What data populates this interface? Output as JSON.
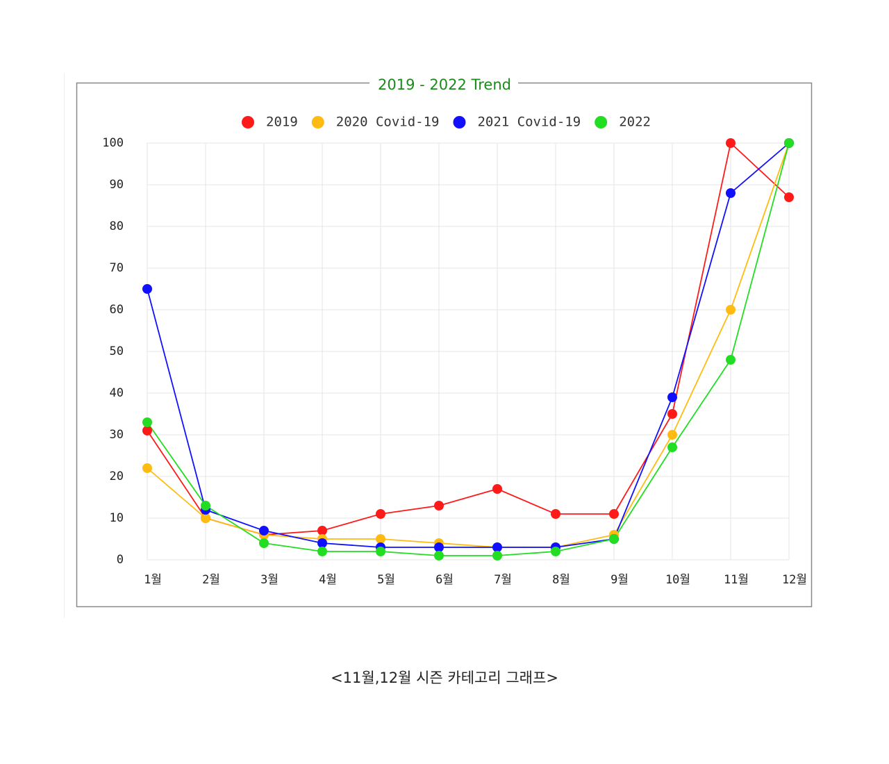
{
  "chart_data": {
    "type": "line",
    "title": "2019 - 2022 Trend",
    "categories": [
      "1월",
      "2월",
      "3월",
      "4월",
      "5월",
      "6월",
      "7월",
      "8월",
      "9월",
      "10월",
      "11월",
      "12월"
    ],
    "series": [
      {
        "name": "2019",
        "color": "#ff1a1a",
        "values": [
          31,
          10,
          6,
          7,
          11,
          13,
          17,
          11,
          11,
          35,
          100,
          87
        ]
      },
      {
        "name": "2020 Covid-19",
        "color": "#ffbb11",
        "values": [
          22,
          10,
          6,
          5,
          5,
          4,
          3,
          3,
          6,
          30,
          60,
          100
        ]
      },
      {
        "name": "2021 Covid-19",
        "color": "#1010ff",
        "values": [
          65,
          12,
          7,
          4,
          3,
          3,
          3,
          3,
          5,
          39,
          88,
          100
        ]
      },
      {
        "name": "2022",
        "color": "#22dd22",
        "values": [
          33,
          13,
          4,
          2,
          2,
          1,
          1,
          2,
          5,
          27,
          48,
          100
        ]
      }
    ],
    "ylim": [
      0,
      100
    ],
    "yticks": [
      0,
      10,
      20,
      30,
      40,
      50,
      60,
      70,
      80,
      90,
      100
    ],
    "grid": true,
    "legend": "top",
    "caption": "<11월,12월 시즌 카테고리 그래프>"
  }
}
